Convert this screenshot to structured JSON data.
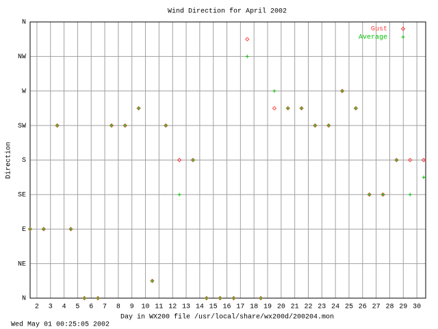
{
  "chart_data": {
    "type": "scatter",
    "title": "Wind Direction for April 2002",
    "x_label": "Day in WX200 file /usr/local/share/wx200d/200204.mon",
    "y_label": "Direction",
    "footer": "Wed May 01 00:25:05 2002",
    "x": [
      1.5,
      2.5,
      3.5,
      4.5,
      5.5,
      6.5,
      7.5,
      8.5,
      9.5,
      10.5,
      11.5,
      12.5,
      13.5,
      14.5,
      15.5,
      16.5,
      17.5,
      18.5,
      19.5,
      20.5,
      21.5,
      22.5,
      23.5,
      24.5,
      25.5,
      26.5,
      27.5,
      28.5,
      29.5,
      30.5
    ],
    "series": [
      {
        "name": "Gust",
        "color": "#ff4040",
        "marker": "diamond",
        "values": [
          90,
          90,
          225,
          90,
          0,
          0,
          225,
          225,
          247.5,
          22.5,
          225,
          180,
          180,
          0,
          0,
          0,
          337.5,
          0,
          247.5,
          247.5,
          247.5,
          225,
          225,
          270,
          247.5,
          135,
          135,
          180,
          180,
          180
        ]
      },
      {
        "name": "Average",
        "color": "#00c000",
        "marker": "plus",
        "values": [
          90,
          90,
          225,
          90,
          0,
          0,
          225,
          225,
          247.5,
          22.5,
          225,
          135,
          180,
          0,
          0,
          0,
          315,
          0,
          270,
          247.5,
          247.5,
          225,
          225,
          270,
          247.5,
          135,
          135,
          180,
          135,
          157.5
        ]
      }
    ],
    "xlim": [
      1.5,
      30.65
    ],
    "xticks": [
      2,
      3,
      4,
      5,
      6,
      7,
      8,
      9,
      10,
      11,
      12,
      13,
      14,
      15,
      16,
      17,
      18,
      19,
      20,
      21,
      22,
      23,
      24,
      25,
      26,
      27,
      28,
      29,
      30
    ],
    "ylim": [
      0,
      360
    ],
    "yticks": [
      {
        "value": 0,
        "label": "N"
      },
      {
        "value": 45,
        "label": "NE"
      },
      {
        "value": 90,
        "label": "E"
      },
      {
        "value": 135,
        "label": "SE"
      },
      {
        "value": 180,
        "label": "S"
      },
      {
        "value": 225,
        "label": "SW"
      },
      {
        "value": 270,
        "label": "W"
      },
      {
        "value": 315,
        "label": "NW"
      },
      {
        "value": 360,
        "label": "N"
      }
    ],
    "grid": true,
    "legend": "top-right"
  }
}
